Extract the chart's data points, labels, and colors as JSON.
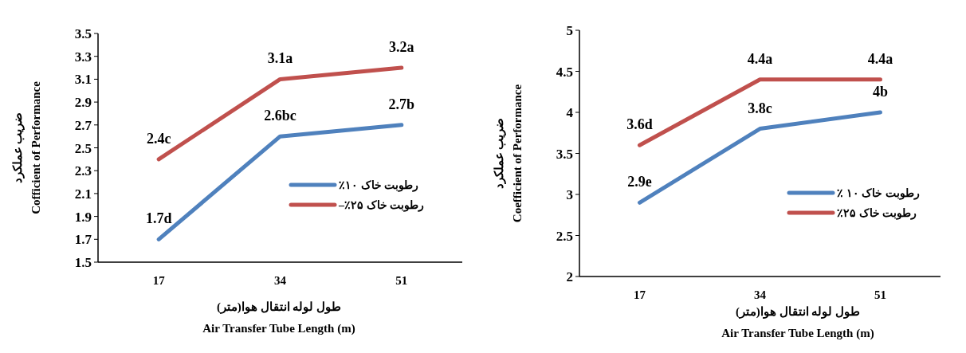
{
  "chart_data": [
    {
      "type": "line",
      "categories": [
        "17",
        "34",
        "51"
      ],
      "ylim": [
        1.5,
        3.5
      ],
      "yticks": [
        1.5,
        1.7,
        1.9,
        2.1,
        2.3,
        2.5,
        2.7,
        2.9,
        3.1,
        3.3,
        3.5
      ],
      "xlabel": "طول لوله انتقال هوا(متر)\nAir Transfer Tube Length (m)",
      "ylabel": "ضریب عملکرد\nCofficient of Performance",
      "legend": "right",
      "series": [
        {
          "name": "رطوبت خاک ۱۰٪",
          "color": "#4f81bd",
          "values": [
            1.7,
            2.6,
            2.7
          ],
          "value_labels": [
            "1.7d",
            "2.6bc",
            "2.7b"
          ]
        },
        {
          "name": "رطوبت خاک ۲۵٪–",
          "color": "#c0504d",
          "values": [
            2.4,
            3.1,
            3.2
          ],
          "value_labels": [
            "2.4c",
            "3.1a",
            "3.2a"
          ]
        }
      ]
    },
    {
      "type": "line",
      "categories": [
        "17",
        "34",
        "51"
      ],
      "ylim": [
        2,
        5
      ],
      "yticks": [
        2,
        2.5,
        3,
        3.5,
        4,
        4.5,
        5
      ],
      "xlabel": "طول لوله انتقال هوا(متر)\nAir Transfer Tube Length (m)",
      "ylabel": "ضریب عملکرد\nCoefficient of Performance",
      "legend": "right",
      "series": [
        {
          "name": "رطوبت خاک ۱۰ ٪",
          "color": "#4f81bd",
          "values": [
            2.9,
            3.8,
            4.0
          ],
          "value_labels": [
            "2.9e",
            "3.8c",
            "4b"
          ]
        },
        {
          "name": "رطوبت خاک ۲۵٪",
          "color": "#c0504d",
          "values": [
            3.6,
            4.4,
            4.4
          ],
          "value_labels": [
            "3.6d",
            "4.4a",
            "4.4a"
          ]
        }
      ]
    }
  ]
}
